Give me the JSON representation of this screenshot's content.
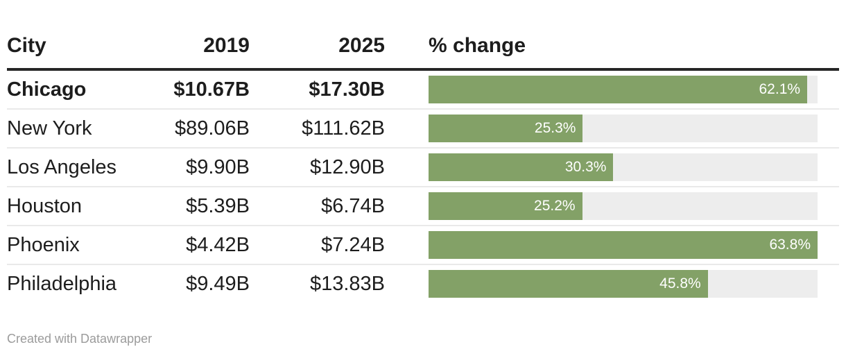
{
  "colors": {
    "bar_fill": "#83a167",
    "bar_track": "#ededed",
    "header_rule": "#262626",
    "row_divider": "#e9e9e9",
    "text": "#1d1d1d",
    "bar_label": "#ffffff",
    "footer_text": "#9b9b9b"
  },
  "header": {
    "city": "City",
    "y2019": "2019",
    "y2025": "2025",
    "pct": "% change"
  },
  "rows": [
    {
      "city": "Chicago",
      "v2019": "$10.67B",
      "v2025": "$17.30B",
      "pct_label": "62.1%",
      "pct": 62.1,
      "bold": true
    },
    {
      "city": "New York",
      "v2019": "$89.06B",
      "v2025": "$111.62B",
      "pct_label": "25.3%",
      "pct": 25.3,
      "bold": false
    },
    {
      "city": "Los Angeles",
      "v2019": "$9.90B",
      "v2025": "$12.90B",
      "pct_label": "30.3%",
      "pct": 30.3,
      "bold": false
    },
    {
      "city": "Houston",
      "v2019": "$5.39B",
      "v2025": "$6.74B",
      "pct_label": "25.2%",
      "pct": 25.2,
      "bold": false
    },
    {
      "city": "Phoenix",
      "v2019": "$4.42B",
      "v2025": "$7.24B",
      "pct_label": "63.8%",
      "pct": 63.8,
      "bold": false
    },
    {
      "city": "Philadelphia",
      "v2019": "$9.49B",
      "v2025": "$13.83B",
      "pct_label": "45.8%",
      "pct": 45.8,
      "bold": false
    }
  ],
  "bar_scale_max": 63.8,
  "footer": {
    "text": "Created with Datawrapper"
  },
  "chart_data": {
    "type": "table",
    "title": "",
    "columns": [
      "City",
      "2019",
      "2025",
      "% change"
    ],
    "categories": [
      "Chicago",
      "New York",
      "Los Angeles",
      "Houston",
      "Phoenix",
      "Philadelphia"
    ],
    "series": [
      {
        "name": "2019",
        "unit": "$B",
        "values": [
          10.67,
          89.06,
          9.9,
          5.39,
          4.42,
          9.49
        ]
      },
      {
        "name": "2025",
        "unit": "$B",
        "values": [
          17.3,
          111.62,
          12.9,
          6.74,
          7.24,
          13.83
        ]
      },
      {
        "name": "% change",
        "unit": "%",
        "display": "bar",
        "values": [
          62.1,
          25.3,
          30.3,
          25.2,
          63.8,
          45.8
        ]
      }
    ],
    "bar_axis_range": [
      0,
      63.8
    ],
    "bar_color": "#83a167",
    "legend": "none",
    "grid": "off",
    "attribution": "Created with Datawrapper"
  }
}
